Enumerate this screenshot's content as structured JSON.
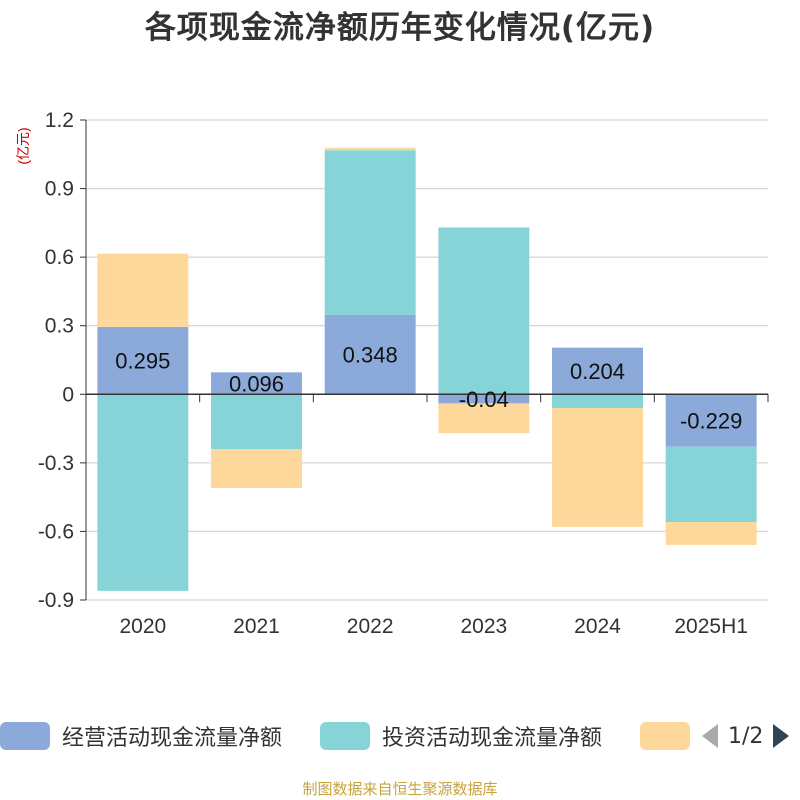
{
  "title": "各项现金流净额历年变化情况(亿元)",
  "source": "制图数据来自恒生聚源数据库",
  "legend_pager": {
    "page_text": "1/2"
  },
  "chart_data": {
    "type": "bar",
    "stacked": true,
    "ylabel": "(亿元)",
    "ylim": [
      -0.9,
      1.2
    ],
    "yticks": [
      1.2,
      0.9,
      0.6,
      0.3,
      0,
      -0.3,
      -0.6,
      -0.9
    ],
    "ytick_labels": [
      "1.2",
      "0.9",
      "0.6",
      "0.3",
      "0",
      "-0.3",
      "-0.6",
      "-0.9"
    ],
    "grid": true,
    "legend_position": "bottom",
    "categories": [
      "2020",
      "2021",
      "2022",
      "2023",
      "2024",
      "2025H1"
    ],
    "series": [
      {
        "name": "经营活动现金流量净额",
        "color": "#8caad9",
        "values": [
          0.295,
          0.096,
          0.348,
          -0.04,
          0.204,
          -0.229
        ],
        "data_labels": [
          "0.295",
          "0.096",
          "0.348",
          "-0.04",
          "0.204",
          "-0.229"
        ]
      },
      {
        "name": "投资活动现金流量净额",
        "color": "#86d4d7",
        "values": [
          -0.86,
          -0.24,
          0.72,
          0.73,
          -0.06,
          -0.33
        ]
      },
      {
        "name": "",
        "color": "#fdd89a",
        "values": [
          0.32,
          -0.17,
          0.01,
          -0.13,
          -0.52,
          -0.1
        ]
      }
    ]
  }
}
